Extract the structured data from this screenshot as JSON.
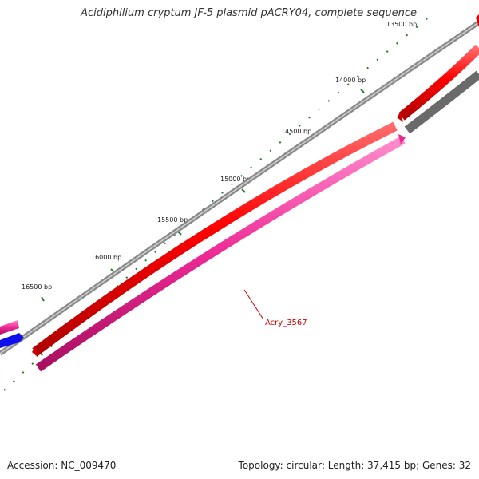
{
  "title": "Acidiphilium cryptum JF-5 plasmid pACRY04, complete sequence",
  "footer": {
    "accession": "Accession: NC_009470",
    "summary": "Topology: circular; Length: 37,415 bp; Genes: 32"
  },
  "ticks": [
    "13500 bp",
    "14000 bp",
    "14500 bp",
    "15000 bp",
    "15500 bp",
    "16000 bp",
    "16500 bp"
  ],
  "gene_label": "Acry_3567",
  "colors": {
    "backbone": "#8a8a8a",
    "forward_gene": "#ee0000",
    "reverse_gene": "#e8288f",
    "forward_gray": "#666666",
    "blue_gene": "#1010ee",
    "tick": "#2a7a2a",
    "label": "#cc0000"
  }
}
